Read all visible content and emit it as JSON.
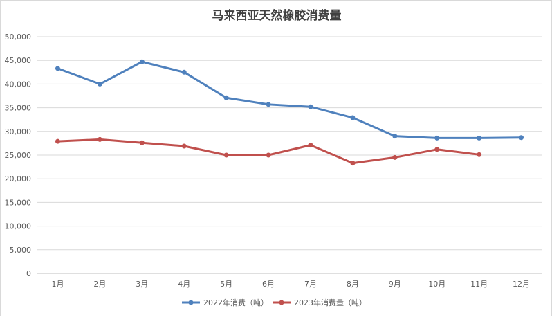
{
  "chart_data": {
    "type": "line",
    "title": "马来西亚天然橡胶消费量",
    "xlabel": "",
    "ylabel": "",
    "categories": [
      "1月",
      "2月",
      "3月",
      "4月",
      "5月",
      "6月",
      "7月",
      "8月",
      "9月",
      "10月",
      "11月",
      "12月"
    ],
    "ylim": [
      0,
      50000
    ],
    "yticks": [
      0,
      5000,
      10000,
      15000,
      20000,
      25000,
      30000,
      35000,
      40000,
      45000,
      50000
    ],
    "ytick_labels": [
      "0",
      "5,000",
      "10,000",
      "15,000",
      "20,000",
      "25,000",
      "30,000",
      "35,000",
      "40,000",
      "45,000",
      "50,000"
    ],
    "grid": true,
    "legend_position": "bottom",
    "series": [
      {
        "name": "2022年消费（吨）",
        "color": "#4f81bd",
        "values": [
          43300,
          40000,
          44700,
          42500,
          37100,
          35700,
          35200,
          32900,
          29000,
          28600,
          28600,
          28700
        ]
      },
      {
        "name": "2023年消费量（吨）",
        "color": "#c0504d",
        "values": [
          27900,
          28300,
          27600,
          26900,
          25000,
          25000,
          27100,
          23300,
          24500,
          26200,
          25100,
          null
        ]
      }
    ]
  }
}
